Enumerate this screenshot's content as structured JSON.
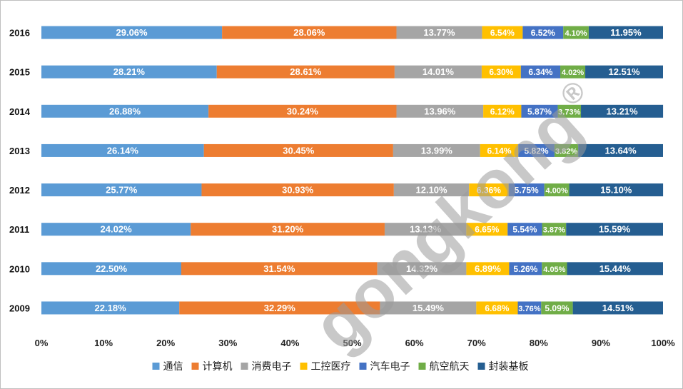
{
  "chart_data": {
    "type": "bar",
    "orientation": "horizontal-stacked-100",
    "categories": [
      "2016",
      "2015",
      "2014",
      "2013",
      "2012",
      "2011",
      "2010",
      "2009"
    ],
    "series": [
      {
        "name": "通信",
        "color": "#5b9bd5",
        "values": [
          29.06,
          28.21,
          26.88,
          26.14,
          25.77,
          24.02,
          22.5,
          22.18
        ]
      },
      {
        "name": "计算机",
        "color": "#ed7d31",
        "values": [
          28.06,
          28.61,
          30.24,
          30.45,
          30.93,
          31.2,
          31.54,
          32.29
        ]
      },
      {
        "name": "消费电子",
        "color": "#a5a5a5",
        "values": [
          13.77,
          14.01,
          13.96,
          13.99,
          12.1,
          13.13,
          14.32,
          15.49
        ]
      },
      {
        "name": "工控医疗",
        "color": "#ffc000",
        "values": [
          6.54,
          6.3,
          6.12,
          6.14,
          6.36,
          6.65,
          6.89,
          6.68
        ]
      },
      {
        "name": "汽车电子",
        "color": "#4472c4",
        "values": [
          6.52,
          6.34,
          5.87,
          5.82,
          5.75,
          5.54,
          5.26,
          3.76
        ]
      },
      {
        "name": "航空航天",
        "color": "#70ad47",
        "values": [
          4.1,
          4.02,
          3.73,
          3.82,
          4.0,
          3.87,
          4.05,
          5.09
        ]
      },
      {
        "name": "封装基板",
        "color": "#255e91",
        "values": [
          11.95,
          12.51,
          13.21,
          13.64,
          15.1,
          15.59,
          15.44,
          14.51
        ]
      }
    ],
    "xticks": [
      "0%",
      "10%",
      "20%",
      "30%",
      "40%",
      "50%",
      "60%",
      "70%",
      "80%",
      "90%",
      "100%"
    ],
    "xlim": [
      0,
      100
    ],
    "title": "",
    "xlabel": "",
    "ylabel": "",
    "grid": false,
    "legend_position": "bottom",
    "label_format": "percent-2dp"
  },
  "watermark": {
    "text": "gongkong",
    "mark": "®"
  }
}
